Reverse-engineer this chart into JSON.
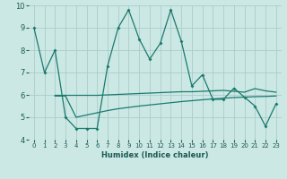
{
  "title": "",
  "xlabel": "Humidex (Indice chaleur)",
  "xlim": [
    -0.5,
    23.5
  ],
  "ylim": [
    4,
    10
  ],
  "yticks": [
    4,
    5,
    6,
    7,
    8,
    9,
    10
  ],
  "xticks": [
    0,
    1,
    2,
    3,
    4,
    5,
    6,
    7,
    8,
    9,
    10,
    11,
    12,
    13,
    14,
    15,
    16,
    17,
    18,
    19,
    20,
    21,
    22,
    23
  ],
  "bg_color": "#cce8e4",
  "grid_color": "#aaccca",
  "line_color": "#1a7a6e",
  "line1_x": [
    0,
    1,
    2,
    3,
    4,
    5,
    6,
    7,
    8,
    9,
    10,
    11,
    12,
    13,
    14,
    15,
    16,
    17,
    18,
    19,
    20,
    21,
    22,
    23
  ],
  "line1_y": [
    9.0,
    7.0,
    8.0,
    5.0,
    4.5,
    4.5,
    4.5,
    7.3,
    9.0,
    9.8,
    8.5,
    7.6,
    8.3,
    9.8,
    8.4,
    6.4,
    6.9,
    5.8,
    5.8,
    6.3,
    5.9,
    5.5,
    4.6,
    5.6
  ],
  "line2_x": [
    2,
    3,
    4,
    5,
    6,
    7,
    8,
    9,
    10,
    11,
    12,
    13,
    14,
    15,
    16,
    17,
    18,
    19,
    20,
    21,
    22,
    23
  ],
  "line2_y": [
    5.95,
    5.95,
    5.0,
    5.1,
    5.2,
    5.3,
    5.38,
    5.44,
    5.5,
    5.55,
    5.6,
    5.65,
    5.7,
    5.74,
    5.78,
    5.82,
    5.85,
    5.88,
    5.9,
    5.92,
    5.93,
    5.95
  ],
  "line3_x": [
    2,
    3,
    4,
    5,
    6,
    7,
    8,
    9,
    10,
    11,
    12,
    13,
    14,
    15,
    16,
    17,
    18,
    19,
    20,
    21,
    22,
    23
  ],
  "line3_y": [
    5.98,
    5.98,
    5.98,
    5.98,
    5.98,
    6.0,
    6.02,
    6.04,
    6.06,
    6.08,
    6.1,
    6.12,
    6.14,
    6.14,
    6.16,
    6.18,
    6.2,
    6.16,
    6.12,
    6.28,
    6.18,
    6.12
  ]
}
